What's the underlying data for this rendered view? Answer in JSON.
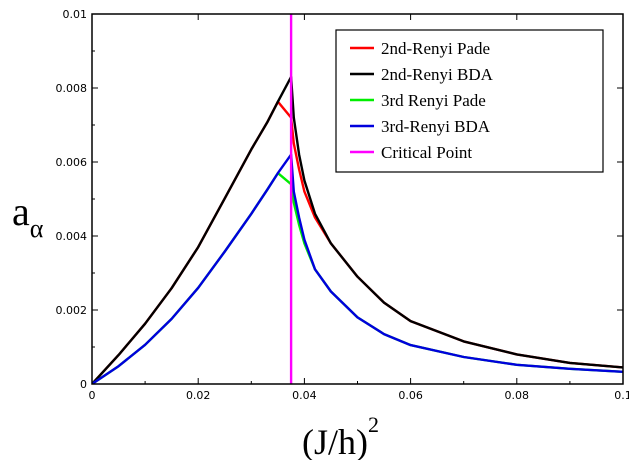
{
  "chart_data": {
    "type": "line",
    "title": "",
    "xlabel": "(J/h)",
    "xlabel_superscript": "2",
    "ylabel": "a",
    "ylabel_subscript": "α",
    "xlim": [
      0,
      0.1
    ],
    "ylim": [
      0,
      0.01
    ],
    "x_ticks": [
      0,
      0.02,
      0.04,
      0.06,
      0.08,
      0.1
    ],
    "x_tick_labels": [
      "0",
      "0.02",
      "0.04",
      "0.06",
      "0.08",
      "0.1"
    ],
    "y_ticks": [
      0,
      0.002,
      0.004,
      0.006,
      0.008,
      0.01
    ],
    "y_tick_labels": [
      "0",
      "0.002",
      "0.004",
      "0.006",
      "0.008",
      "0.01"
    ],
    "grid": false,
    "legend_position": "top-right",
    "critical_point": 0.0375,
    "series": [
      {
        "name": "2nd-Renyi Pade",
        "color": "#ff0000",
        "x": [
          0,
          0.005,
          0.01,
          0.015,
          0.02,
          0.025,
          0.03,
          0.033,
          0.035,
          0.0375,
          0.038,
          0.039,
          0.04,
          0.042,
          0.045,
          0.05,
          0.055,
          0.06,
          0.07,
          0.08,
          0.09,
          0.1
        ],
        "y": [
          0,
          0.00078,
          0.00163,
          0.00259,
          0.0037,
          0.00502,
          0.00634,
          0.00707,
          0.00763,
          0.0072,
          0.0065,
          0.0058,
          0.0052,
          0.0045,
          0.0038,
          0.0029,
          0.0022,
          0.0017,
          0.00115,
          0.0008,
          0.00057,
          0.00045
        ]
      },
      {
        "name": "2nd-Renyi BDA",
        "color": "#000000",
        "x": [
          0,
          0.005,
          0.01,
          0.015,
          0.02,
          0.025,
          0.03,
          0.033,
          0.035,
          0.0375,
          0.038,
          0.039,
          0.04,
          0.042,
          0.045,
          0.05,
          0.055,
          0.06,
          0.07,
          0.08,
          0.09,
          0.1
        ],
        "y": [
          0,
          0.00078,
          0.00163,
          0.00259,
          0.0037,
          0.00502,
          0.00634,
          0.00707,
          0.00763,
          0.0083,
          0.0072,
          0.0062,
          0.0055,
          0.0046,
          0.0038,
          0.0029,
          0.0022,
          0.0017,
          0.00115,
          0.0008,
          0.00057,
          0.00045
        ]
      },
      {
        "name": "3rd Renyi Pade",
        "color": "#00ee00",
        "x": [
          0,
          0.005,
          0.01,
          0.015,
          0.02,
          0.025,
          0.03,
          0.033,
          0.035,
          0.0375,
          0.038,
          0.039,
          0.04,
          0.042,
          0.045,
          0.05,
          0.055,
          0.06,
          0.07,
          0.08,
          0.09,
          0.1
        ],
        "y": [
          0,
          0.00048,
          0.00106,
          0.00176,
          0.0026,
          0.00358,
          0.0046,
          0.00525,
          0.0057,
          0.0054,
          0.0049,
          0.0043,
          0.0038,
          0.0031,
          0.0025,
          0.0018,
          0.00135,
          0.00105,
          0.00073,
          0.00052,
          0.00041,
          0.00033
        ]
      },
      {
        "name": "3rd-Renyi BDA",
        "color": "#0000dd",
        "x": [
          0,
          0.005,
          0.01,
          0.015,
          0.02,
          0.025,
          0.03,
          0.033,
          0.035,
          0.0375,
          0.038,
          0.039,
          0.04,
          0.042,
          0.045,
          0.05,
          0.055,
          0.06,
          0.07,
          0.08,
          0.09,
          0.1
        ],
        "y": [
          0,
          0.00048,
          0.00106,
          0.00176,
          0.0026,
          0.00358,
          0.0046,
          0.00525,
          0.0057,
          0.0062,
          0.0052,
          0.0045,
          0.0039,
          0.0031,
          0.0025,
          0.0018,
          0.00135,
          0.00105,
          0.00073,
          0.00052,
          0.00041,
          0.00033
        ]
      },
      {
        "name": "Critical Point",
        "color": "#ff00ff",
        "x": [
          0.0375,
          0.0375
        ],
        "y": [
          0,
          0.01
        ]
      }
    ]
  }
}
